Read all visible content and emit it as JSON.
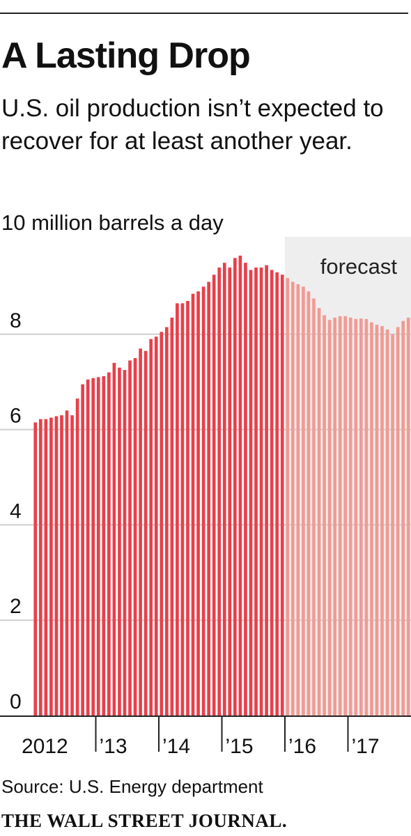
{
  "title": "A Lasting Drop",
  "subtitle": "U.S. oil production isn’t expected to recover for at least another year.",
  "unit_label": "10 million barrels a day",
  "source": "Source: U.S. Energy department",
  "brand": "THE WALL STREET JOURNAL.",
  "colors": {
    "actual": "#e8404a",
    "forecast": "#f29a93",
    "forecast_band": "#eeeeee",
    "grid": "#cfcfcf",
    "axis": "#222222"
  },
  "chart_data": {
    "type": "bar",
    "ylabel": "10 million barrels a day",
    "ylim": [
      0,
      10
    ],
    "yticks": [
      0,
      2,
      4,
      6,
      8
    ],
    "grid": true,
    "forecast_label": "forecast",
    "forecast_start_index": 48,
    "x_tick_labels": [
      "2012",
      "’13",
      "’14",
      "’15",
      "’16",
      "’17"
    ],
    "categories": [
      "2012-01",
      "2012-02",
      "2012-03",
      "2012-04",
      "2012-05",
      "2012-06",
      "2012-07",
      "2012-08",
      "2012-09",
      "2012-10",
      "2012-11",
      "2012-12",
      "2013-01",
      "2013-02",
      "2013-03",
      "2013-04",
      "2013-05",
      "2013-06",
      "2013-07",
      "2013-08",
      "2013-09",
      "2013-10",
      "2013-11",
      "2013-12",
      "2014-01",
      "2014-02",
      "2014-03",
      "2014-04",
      "2014-05",
      "2014-06",
      "2014-07",
      "2014-08",
      "2014-09",
      "2014-10",
      "2014-11",
      "2014-12",
      "2015-01",
      "2015-02",
      "2015-03",
      "2015-04",
      "2015-05",
      "2015-06",
      "2015-07",
      "2015-08",
      "2015-09",
      "2015-10",
      "2015-11",
      "2015-12",
      "2016-01",
      "2016-02",
      "2016-03",
      "2016-04",
      "2016-05",
      "2016-06",
      "2016-07",
      "2016-08",
      "2016-09",
      "2016-10",
      "2016-11",
      "2016-12",
      "2017-01",
      "2017-02",
      "2017-03",
      "2017-04",
      "2017-05",
      "2017-06",
      "2017-07",
      "2017-08",
      "2017-09",
      "2017-10",
      "2017-11",
      "2017-12"
    ],
    "values": [
      6.15,
      6.22,
      6.22,
      6.25,
      6.28,
      6.3,
      6.4,
      6.3,
      6.65,
      6.95,
      7.05,
      7.08,
      7.1,
      7.12,
      7.2,
      7.4,
      7.3,
      7.25,
      7.45,
      7.5,
      7.7,
      7.65,
      7.9,
      7.95,
      8.05,
      8.15,
      8.35,
      8.65,
      8.65,
      8.7,
      8.85,
      8.9,
      9.0,
      9.1,
      9.25,
      9.4,
      9.5,
      9.4,
      9.6,
      9.65,
      9.5,
      9.35,
      9.4,
      9.4,
      9.45,
      9.35,
      9.3,
      9.25,
      9.18,
      9.1,
      9.05,
      9.0,
      8.9,
      8.75,
      8.55,
      8.4,
      8.3,
      8.35,
      8.38,
      8.38,
      8.35,
      8.32,
      8.33,
      8.32,
      8.25,
      8.2,
      8.17,
      8.1,
      8.0,
      8.15,
      8.28,
      8.35
    ]
  }
}
